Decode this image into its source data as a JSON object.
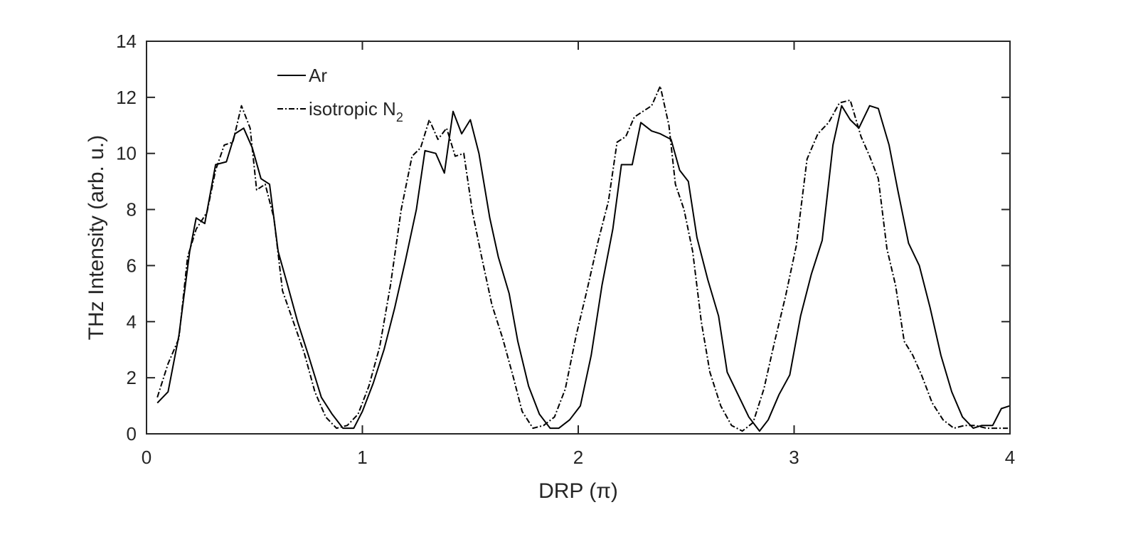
{
  "chart_data": {
    "type": "line",
    "xlabel": "DRP (π)",
    "ylabel": "THz Intensity (arb. u.)",
    "xlim": [
      0,
      4
    ],
    "ylim": [
      0,
      14
    ],
    "xticks": [
      "0",
      "1",
      "2",
      "3",
      "4"
    ],
    "yticks": [
      "0",
      "2",
      "4",
      "6",
      "8",
      "10",
      "12",
      "14"
    ],
    "grid": false,
    "legend": {
      "placement": "top-left",
      "entries": [
        {
          "label": "Ar",
          "style": "solid"
        },
        {
          "label": "isotropic N",
          "subscript": "2",
          "style": "dashdot"
        }
      ]
    },
    "series": [
      {
        "name": "Ar",
        "style": "solid",
        "color": "#000000",
        "x": [
          0.05,
          0.1,
          0.15,
          0.2,
          0.23,
          0.27,
          0.32,
          0.37,
          0.41,
          0.45,
          0.49,
          0.53,
          0.57,
          0.61,
          0.65,
          0.7,
          0.75,
          0.81,
          0.86,
          0.91,
          0.96,
          1.0,
          1.05,
          1.1,
          1.15,
          1.2,
          1.25,
          1.29,
          1.34,
          1.38,
          1.42,
          1.46,
          1.5,
          1.54,
          1.59,
          1.63,
          1.68,
          1.72,
          1.77,
          1.82,
          1.87,
          1.91,
          1.96,
          2.01,
          2.06,
          2.11,
          2.16,
          2.2,
          2.25,
          2.29,
          2.34,
          2.38,
          2.43,
          2.47,
          2.51,
          2.55,
          2.6,
          2.65,
          2.69,
          2.74,
          2.79,
          2.84,
          2.88,
          2.93,
          2.98,
          3.03,
          3.08,
          3.13,
          3.18,
          3.22,
          3.26,
          3.3,
          3.35,
          3.39,
          3.44,
          3.48,
          3.53,
          3.58,
          3.63,
          3.68,
          3.73,
          3.78,
          3.83,
          3.87,
          3.92,
          3.96,
          4.0
        ],
        "y": [
          1.1,
          1.5,
          3.5,
          6.5,
          7.7,
          7.5,
          9.6,
          9.7,
          10.7,
          10.9,
          10.2,
          9.1,
          8.9,
          6.5,
          5.4,
          4.0,
          2.8,
          1.3,
          0.7,
          0.2,
          0.2,
          0.8,
          1.8,
          3.0,
          4.5,
          6.2,
          8.0,
          10.1,
          10.0,
          9.3,
          11.5,
          10.7,
          11.2,
          10.0,
          7.7,
          6.3,
          5.0,
          3.3,
          1.7,
          0.7,
          0.2,
          0.2,
          0.5,
          1.0,
          2.8,
          5.3,
          7.3,
          9.6,
          9.6,
          11.1,
          10.8,
          10.7,
          10.5,
          9.4,
          9.0,
          7.0,
          5.5,
          4.2,
          2.2,
          1.4,
          0.6,
          0.1,
          0.5,
          1.4,
          2.1,
          4.2,
          5.7,
          6.9,
          10.3,
          11.7,
          11.2,
          10.9,
          11.7,
          11.6,
          10.3,
          8.7,
          6.8,
          6.0,
          4.5,
          2.8,
          1.5,
          0.6,
          0.2,
          0.3,
          0.3,
          0.9,
          1.0
        ]
      },
      {
        "name": "isotropic N2",
        "style": "dashdot",
        "color": "#000000",
        "x": [
          0.05,
          0.1,
          0.15,
          0.19,
          0.23,
          0.28,
          0.32,
          0.36,
          0.4,
          0.44,
          0.48,
          0.51,
          0.55,
          0.59,
          0.63,
          0.68,
          0.73,
          0.78,
          0.83,
          0.88,
          0.93,
          0.98,
          1.03,
          1.08,
          1.13,
          1.18,
          1.23,
          1.27,
          1.31,
          1.35,
          1.39,
          1.43,
          1.47,
          1.51,
          1.55,
          1.6,
          1.65,
          1.7,
          1.74,
          1.79,
          1.84,
          1.89,
          1.94,
          1.99,
          2.04,
          2.09,
          2.14,
          2.18,
          2.22,
          2.26,
          2.3,
          2.34,
          2.38,
          2.42,
          2.45,
          2.49,
          2.53,
          2.57,
          2.61,
          2.66,
          2.71,
          2.76,
          2.81,
          2.86,
          2.91,
          2.96,
          3.01,
          3.06,
          3.11,
          3.16,
          3.21,
          3.26,
          3.31,
          3.35,
          3.39,
          3.43,
          3.47,
          3.51,
          3.55,
          3.59,
          3.64,
          3.69,
          3.74,
          3.79,
          3.84,
          3.89,
          3.94,
          3.99
        ],
        "y": [
          1.3,
          2.5,
          3.4,
          6.3,
          7.3,
          7.9,
          9.4,
          10.3,
          10.4,
          11.7,
          10.9,
          8.7,
          8.9,
          7.7,
          5.1,
          4.0,
          2.9,
          1.5,
          0.6,
          0.2,
          0.3,
          0.7,
          1.7,
          3.1,
          5.3,
          8.0,
          9.9,
          10.2,
          11.2,
          10.5,
          10.9,
          9.9,
          10.0,
          7.9,
          6.4,
          4.6,
          3.4,
          2.0,
          0.8,
          0.2,
          0.3,
          0.6,
          1.6,
          3.5,
          5.1,
          6.8,
          8.3,
          10.4,
          10.6,
          11.3,
          11.5,
          11.7,
          12.4,
          11.0,
          8.9,
          8.0,
          6.5,
          4.0,
          2.2,
          1.0,
          0.3,
          0.1,
          0.4,
          1.6,
          3.3,
          4.9,
          6.7,
          9.8,
          10.7,
          11.1,
          11.8,
          11.9,
          10.6,
          9.9,
          9.1,
          6.6,
          5.3,
          3.3,
          2.8,
          2.1,
          1.1,
          0.5,
          0.2,
          0.3,
          0.3,
          0.2,
          0.2,
          0.2
        ]
      }
    ]
  }
}
